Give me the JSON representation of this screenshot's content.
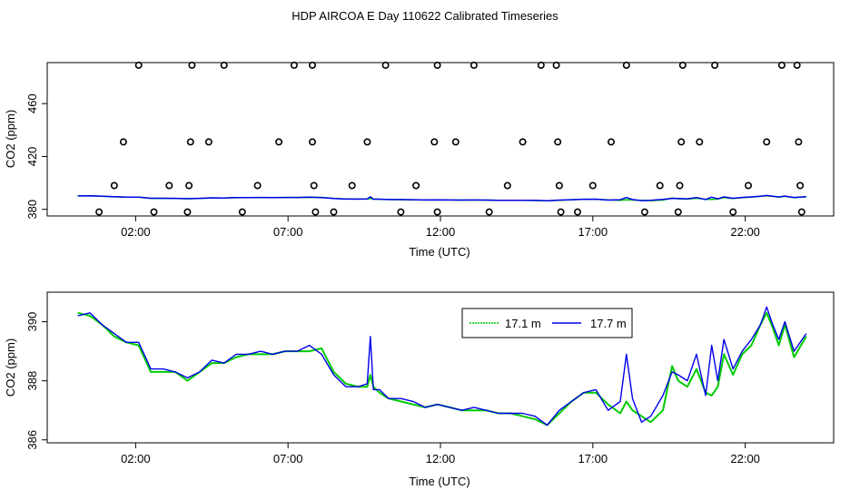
{
  "title": "HDP AIRCOA E  Day 110622  Calibrated Timeseries",
  "chart_data": [
    {
      "type": "scatter+line",
      "xlabel": "Time (UTC)",
      "ylabel": "CO2 (ppm)",
      "x_ticks": [
        "02:00",
        "07:00",
        "12:00",
        "17:00",
        "22:00"
      ],
      "y_ticks": [
        "380",
        "420",
        "460"
      ],
      "xlim_hours": [
        -0.9,
        24.9
      ],
      "ylim": [
        375,
        491
      ],
      "grid": false,
      "points": {
        "x": [
          0.8,
          1.3,
          1.6,
          2.1,
          2.6,
          3.1,
          3.7,
          3.75,
          3.8,
          3.85,
          4.4,
          4.9,
          5.5,
          6.0,
          6.7,
          7.2,
          7.8,
          7.8,
          7.85,
          7.9,
          8.5,
          9.1,
          9.6,
          10.2,
          10.7,
          11.2,
          11.8,
          11.9,
          11.9,
          12.5,
          13.1,
          13.6,
          14.2,
          14.7,
          15.3,
          15.8,
          15.85,
          15.9,
          15.95,
          16.5,
          17.0,
          17.6,
          18.1,
          18.7,
          19.2,
          19.8,
          19.85,
          19.9,
          19.95,
          20.5,
          21.0,
          21.6,
          22.1,
          22.7,
          23.2,
          23.7,
          23.75,
          23.8,
          23.85
        ],
        "y": [
          378,
          398,
          431,
          489,
          378,
          398,
          378,
          398,
          431,
          489,
          431,
          489,
          378,
          398,
          431,
          489,
          489,
          431,
          398,
          378,
          378,
          398,
          431,
          489,
          378,
          398,
          431,
          489,
          378,
          431,
          489,
          378,
          398,
          431,
          489,
          489,
          431,
          398,
          378,
          378,
          398,
          431,
          489,
          378,
          398,
          378,
          398,
          431,
          489,
          431,
          489,
          378,
          398,
          431,
          489,
          489,
          431,
          398,
          378
        ]
      },
      "series": [
        {
          "name": "17.1 m",
          "color": "#00cc00"
        },
        {
          "name": "17.7 m",
          "color": "#0000ee"
        }
      ]
    },
    {
      "type": "line",
      "xlabel": "Time (UTC)",
      "ylabel": "CO2 (ppm)",
      "x_ticks": [
        "02:00",
        "07:00",
        "12:00",
        "17:00",
        "22:00"
      ],
      "y_ticks": [
        "386",
        "388",
        "390"
      ],
      "xlim_hours": [
        -0.9,
        24.9
      ],
      "ylim": [
        385.9,
        391.0
      ],
      "grid": false,
      "legend_position": "top-right",
      "x_hours": [
        0.1,
        0.5,
        0.9,
        1.3,
        1.7,
        2.1,
        2.5,
        2.9,
        3.3,
        3.7,
        4.1,
        4.5,
        4.9,
        5.3,
        5.7,
        6.1,
        6.5,
        6.9,
        7.3,
        7.7,
        8.1,
        8.5,
        8.9,
        9.3,
        9.6,
        9.7,
        9.8,
        10.0,
        10.3,
        10.7,
        11.1,
        11.5,
        11.9,
        12.3,
        12.7,
        13.1,
        13.5,
        13.9,
        14.3,
        14.7,
        15.1,
        15.5,
        15.9,
        16.3,
        16.7,
        17.1,
        17.5,
        17.9,
        18.1,
        18.3,
        18.6,
        18.9,
        19.3,
        19.6,
        19.8,
        20.1,
        20.4,
        20.7,
        20.9,
        21.1,
        21.3,
        21.6,
        21.9,
        22.2,
        22.5,
        22.7,
        22.9,
        23.1,
        23.3,
        23.6,
        24.0
      ],
      "series": [
        {
          "name": "17.1 m",
          "color": "#00cc00",
          "values": [
            390.3,
            390.2,
            389.9,
            389.5,
            389.3,
            389.2,
            388.3,
            388.3,
            388.3,
            388.0,
            388.3,
            388.6,
            388.6,
            388.8,
            388.9,
            388.9,
            388.9,
            389.0,
            389.0,
            389.0,
            389.1,
            388.3,
            387.9,
            387.8,
            387.8,
            388.2,
            387.8,
            387.6,
            387.4,
            387.3,
            387.2,
            387.1,
            387.2,
            387.1,
            387.0,
            387.0,
            387.0,
            386.9,
            386.9,
            386.8,
            386.7,
            386.5,
            386.9,
            387.3,
            387.6,
            387.6,
            387.2,
            386.9,
            387.3,
            387.0,
            386.8,
            386.6,
            387.0,
            388.5,
            388.0,
            387.8,
            388.4,
            387.6,
            387.5,
            387.8,
            388.9,
            388.2,
            388.9,
            389.2,
            389.9,
            390.3,
            389.8,
            389.2,
            389.9,
            388.8,
            389.5
          ]
        },
        {
          "name": "17.7 m",
          "color": "#0000ee",
          "values": [
            390.2,
            390.3,
            389.9,
            389.6,
            389.3,
            389.3,
            388.4,
            388.4,
            388.3,
            388.1,
            388.3,
            388.7,
            388.6,
            388.9,
            388.9,
            389.0,
            388.9,
            389.0,
            389.0,
            389.2,
            388.9,
            388.2,
            387.8,
            387.8,
            387.9,
            389.5,
            387.7,
            387.7,
            387.4,
            387.4,
            387.3,
            387.1,
            387.2,
            387.1,
            387.0,
            387.1,
            387.0,
            386.9,
            386.9,
            386.9,
            386.8,
            386.5,
            387.0,
            387.3,
            387.6,
            387.7,
            387.0,
            387.3,
            388.9,
            387.4,
            386.6,
            386.8,
            387.5,
            388.3,
            388.2,
            388.0,
            388.9,
            387.5,
            389.2,
            388.0,
            389.4,
            388.4,
            389.0,
            389.4,
            389.9,
            390.5,
            389.9,
            389.4,
            390.0,
            389.0,
            389.6
          ]
        }
      ]
    }
  ]
}
